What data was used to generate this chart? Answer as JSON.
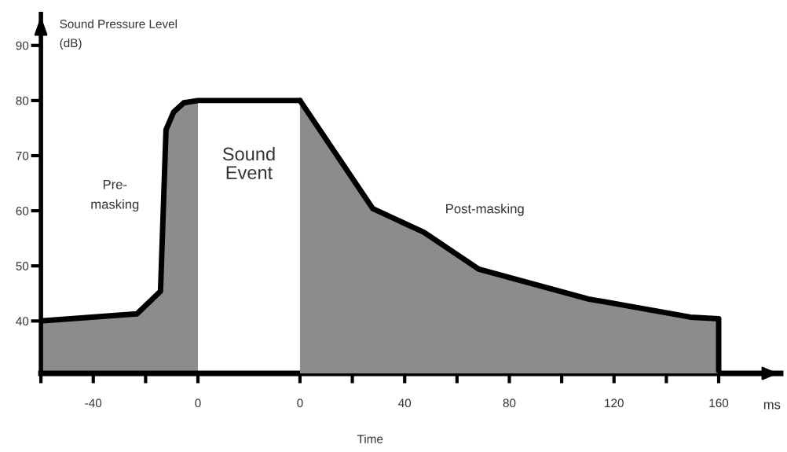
{
  "chart_data": {
    "type": "area",
    "ylabel": "Sound Pressure Level\n(dB)",
    "xlabel": "Time",
    "series": [
      {
        "color": "#8c8c8c",
        "x": [
          -60,
          -23.3,
          -14.3,
          -12.2,
          -9.3,
          -5.4,
          0,
          39
        ],
        "values": [
          40,
          41.3,
          45.4,
          74.7,
          77.9,
          79.6,
          80,
          80
        ]
      },
      {
        "color": "#8c8c8c",
        "axis": "x2",
        "x": [
          0,
          27.8,
          47.3,
          68.3,
          110.2,
          149.2,
          160,
          160
        ],
        "values": [
          80,
          60.4,
          56.1,
          49.4,
          44,
          40.7,
          40.4,
          31
        ]
      }
    ],
    "bands": [
      {
        "axis": "x",
        "from": 0,
        "to": 39,
        "label": "Sound\nEvent",
        "color": "#ffffff"
      }
    ],
    "annotations": [
      "Pre-\nmasking",
      "Post-masking",
      "ms"
    ],
    "xlim": [
      -60,
      222.7
    ],
    "xticks": [
      {
        "value": -60,
        "label": null
      },
      -40,
      {
        "value": -20,
        "label": null
      },
      0
    ],
    "x2lim": [
      -99,
      183.7
    ],
    "x2ticks": [
      0,
      {
        "value": 20,
        "label": null
      },
      40,
      {
        "value": 60,
        "label": null
      },
      80,
      {
        "value": 100,
        "label": null
      },
      120,
      {
        "value": 140,
        "label": null
      },
      160
    ],
    "ylim": [
      30.5,
      95.7
    ],
    "yticks": [
      40,
      50,
      60,
      70,
      80,
      90
    ],
    "grid": false,
    "legend": false
  }
}
